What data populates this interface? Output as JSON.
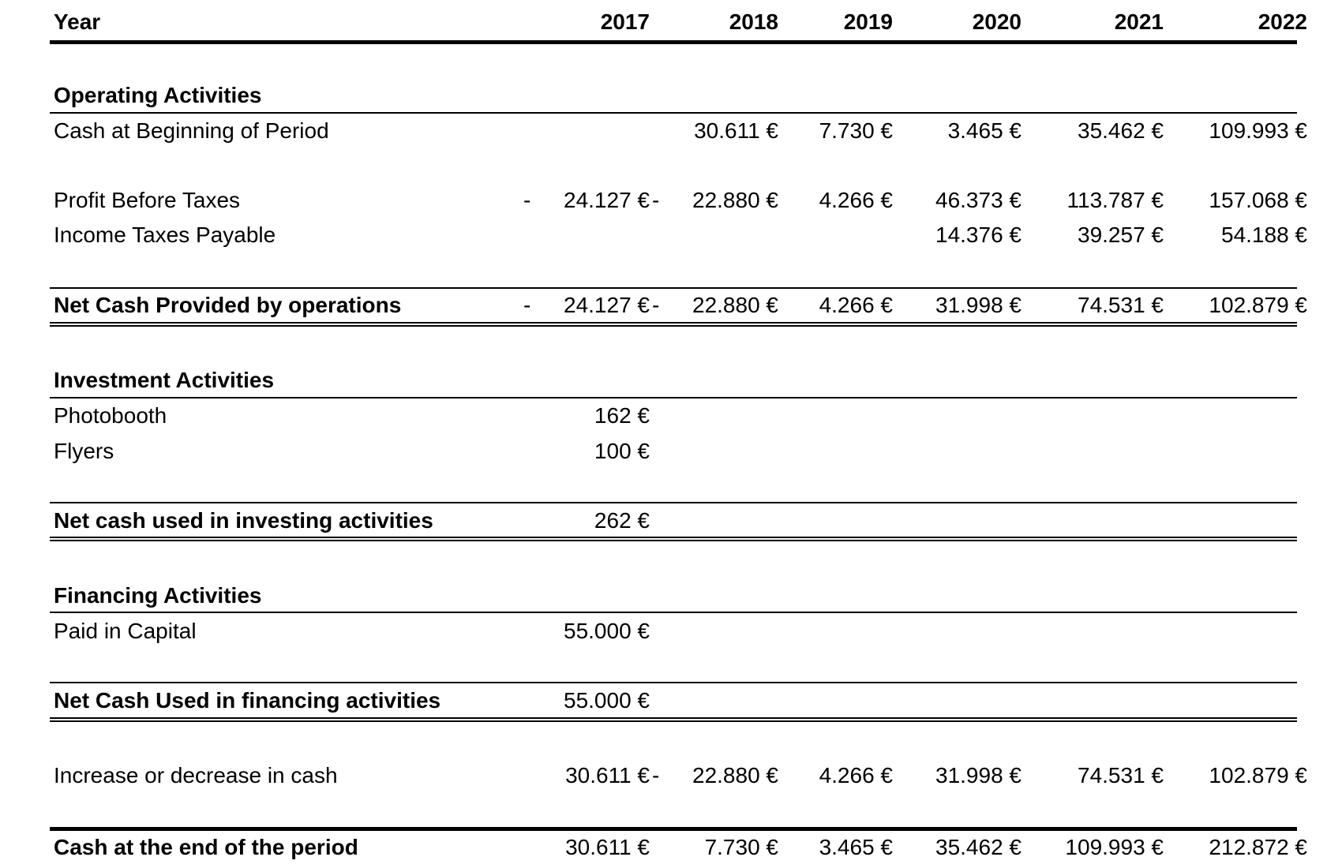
{
  "header": {
    "label": "Year",
    "years": [
      "2017",
      "2018",
      "2019",
      "2020",
      "2021",
      "2022"
    ]
  },
  "operating": {
    "title": "Operating Activities",
    "cash_beginning": {
      "label": "Cash at Beginning of Period",
      "values": [
        "",
        "30.611 €",
        "7.730 €",
        "3.465 €",
        "35.462 €",
        "109.993 €"
      ]
    },
    "profit_before_taxes": {
      "label": "Profit Before Taxes",
      "values": [
        "- 24.127 €",
        "- 22.880 €",
        "- 4.266 €",
        "46.373 €",
        "113.787 €",
        "157.068 €"
      ]
    },
    "income_taxes": {
      "label": "Income Taxes Payable",
      "values": [
        "",
        "",
        "",
        "14.376 €",
        "39.257 €",
        "54.188 €"
      ]
    },
    "net_cash": {
      "label": "Net Cash Provided by operations",
      "values": [
        "- 24.127 €",
        "- 22.880 €",
        "- 4.266 €",
        "31.998 €",
        "74.531 €",
        "102.879 €"
      ]
    }
  },
  "investment": {
    "title": "Investment Activities",
    "photobooth": {
      "label": "Photobooth",
      "values": [
        "162 €",
        "",
        "",
        "",
        "",
        ""
      ]
    },
    "flyers": {
      "label": "Flyers",
      "values": [
        "100 €",
        "",
        "",
        "",
        "",
        ""
      ]
    },
    "net_cash": {
      "label": "Net cash used in investing activities",
      "values": [
        "262 €",
        "",
        "",
        "",
        "",
        ""
      ]
    }
  },
  "financing": {
    "title": "Financing Activities",
    "paid_in_capital": {
      "label": "Paid in Capital",
      "values": [
        "55.000 €",
        "",
        "",
        "",
        "",
        ""
      ]
    },
    "net_cash": {
      "label": "Net Cash Used in financing activities",
      "values": [
        "55.000 €",
        "",
        "",
        "",
        "",
        ""
      ]
    }
  },
  "increase": {
    "label": "Increase or decrease in cash",
    "values": [
      "30.611 €",
      "- 22.880 €",
      "- 4.266 €",
      "31.998 €",
      "74.531 €",
      "102.879 €"
    ]
  },
  "cash_end": {
    "label": "Cash at the end of the period",
    "values": [
      "30.611 €",
      "7.730 €",
      "3.465 €",
      "35.462 €",
      "109.993 €",
      "212.872 €"
    ]
  }
}
